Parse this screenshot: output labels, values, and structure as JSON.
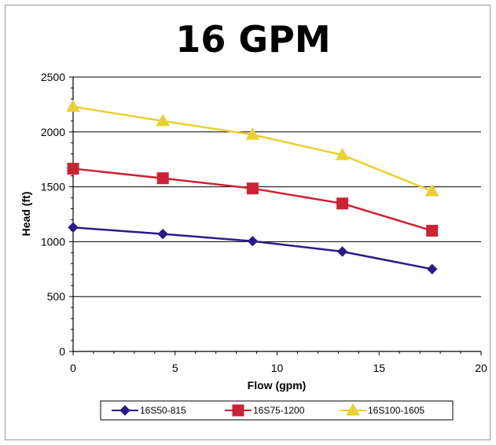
{
  "chart_data": {
    "type": "line",
    "title": "16 GPM",
    "xlabel": "Flow (gpm)",
    "ylabel": "Head (ft)",
    "xlim": [
      0,
      20
    ],
    "ylim": [
      0,
      2500
    ],
    "xticks": [
      0,
      5,
      10,
      15,
      20
    ],
    "yticks": [
      0,
      500,
      1000,
      1500,
      2000,
      2500
    ],
    "grid": "horizontal",
    "legend_position": "bottom",
    "series": [
      {
        "name": "16S50-815",
        "color": "#2a1b88",
        "marker": "diamond",
        "x": [
          0,
          4.4,
          8.8,
          13.2,
          17.6
        ],
        "y": [
          1130,
          1070,
          1005,
          910,
          750
        ]
      },
      {
        "name": "16S75-1200",
        "color": "#cc2233",
        "marker": "square",
        "x": [
          0,
          4.4,
          8.8,
          13.2,
          17.6
        ],
        "y": [
          1665,
          1578,
          1485,
          1348,
          1100
        ]
      },
      {
        "name": "16S100-1605",
        "color": "#e8d130",
        "marker": "triangle",
        "x": [
          0,
          4.4,
          8.8,
          13.2,
          17.6
        ],
        "y": [
          2230,
          2100,
          1975,
          1790,
          1460
        ]
      }
    ]
  }
}
